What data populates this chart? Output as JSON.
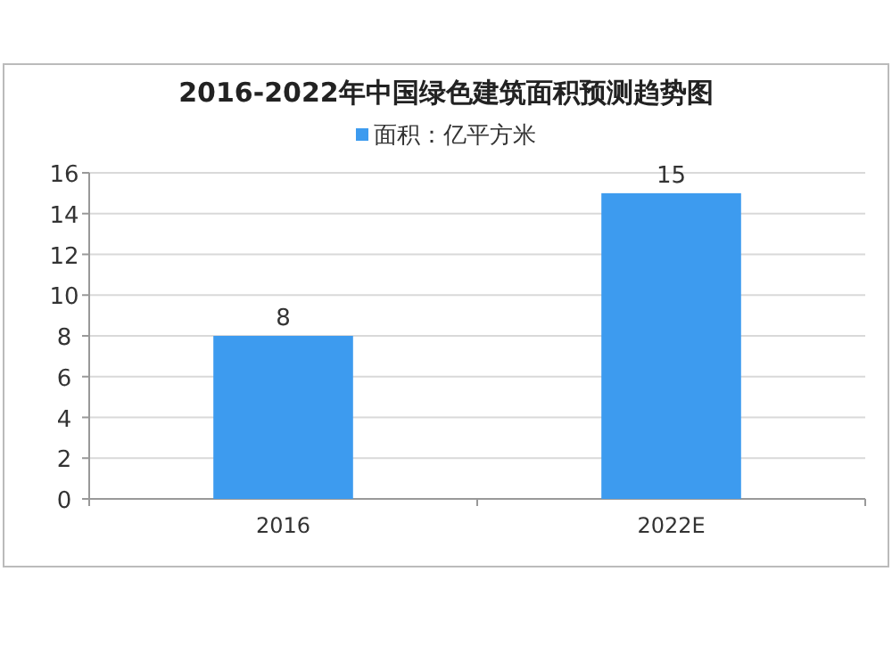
{
  "chart_data": {
    "type": "bar",
    "title": "2016-2022年中国绿色建筑面积预测趋势图",
    "categories": [
      "2016",
      "2022E"
    ],
    "series": [
      {
        "name": "面积：亿平方米",
        "color": "#3d9bef",
        "values": [
          8,
          15
        ]
      }
    ],
    "ylim": [
      0,
      16
    ],
    "yticks": [
      0,
      2,
      4,
      6,
      8,
      10,
      12,
      14,
      16
    ],
    "grid": "y",
    "legend": "top",
    "data_labels": true
  }
}
